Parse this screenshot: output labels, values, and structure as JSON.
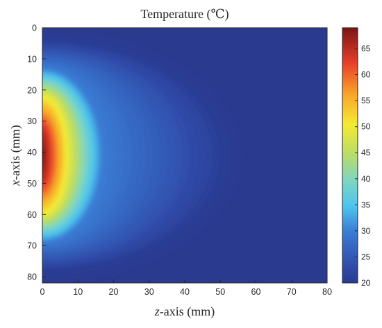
{
  "chart_data": {
    "type": "heatmap",
    "title": "Temperature (℃)",
    "xlabel_var": "z",
    "xlabel_rest": "-axis (mm)",
    "ylabel_var": "x",
    "ylabel_rest": "-axis (mm)",
    "xlim": [
      0,
      80
    ],
    "ylim": [
      0,
      82
    ],
    "y_reversed": true,
    "x_ticks": [
      "0",
      "10",
      "20",
      "30",
      "40",
      "50",
      "60",
      "70",
      "80"
    ],
    "y_ticks": [
      "0",
      "10",
      "20",
      "30",
      "40",
      "50",
      "60",
      "70",
      "80"
    ],
    "colorbar": {
      "range": [
        20,
        69
      ],
      "ticks": [
        "20",
        "25",
        "30",
        "35",
        "40",
        "45",
        "50",
        "55",
        "60",
        "65"
      ],
      "colormap": "jet"
    },
    "field": {
      "source_point": {
        "z": 0,
        "x": 41
      },
      "peak_temperature": 69,
      "ambient_temperature": 20,
      "contours": [
        {
          "temperature": 21,
          "z_extent": 51,
          "x_extent": 37
        },
        {
          "temperature": 30,
          "z_extent": 17,
          "x_extent": 28
        },
        {
          "temperature": 50,
          "z_extent": 7,
          "x_extent": 19
        },
        {
          "temperature": 65,
          "z_extent": 1.5,
          "x_extent": 8
        }
      ]
    }
  }
}
